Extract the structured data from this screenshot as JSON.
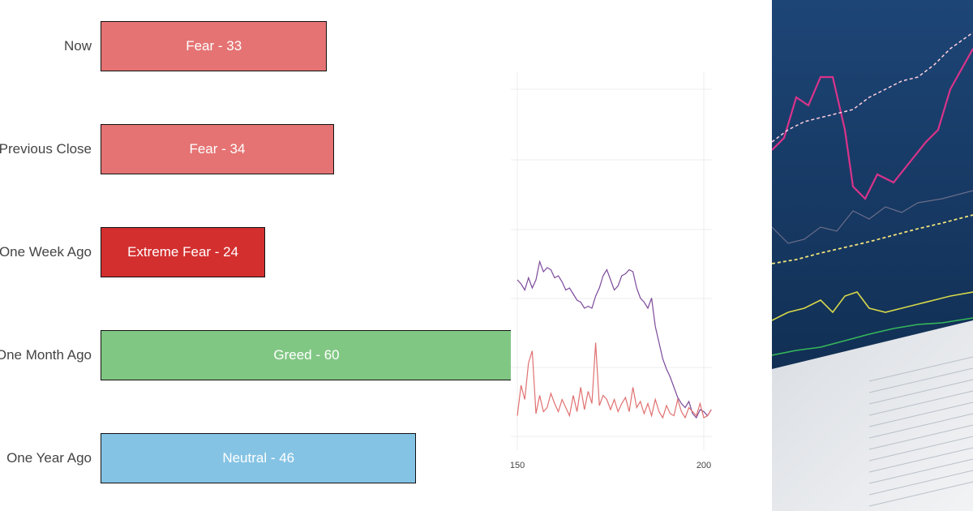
{
  "colors": {
    "fear": "#e57373",
    "extreme_fear": "#d32f2f",
    "greed": "#81c784",
    "neutral": "#85c3e4",
    "line_purple": "#7b4a9a",
    "line_red": "#e07070",
    "photo_bg": "#14345c"
  },
  "chart_data": [
    {
      "type": "bar",
      "orientation": "horizontal",
      "scale_max": 100,
      "categories": [
        "Now",
        "Previous Close",
        "One Week Ago",
        "One Month Ago",
        "One Year Ago"
      ],
      "values": [
        33,
        34,
        24,
        60,
        46
      ],
      "bar_labels": [
        "Fear - 33",
        "Fear - 34",
        "Extreme Fear - 24",
        "Greed - 60",
        "Neutral - 46"
      ],
      "bar_colors": [
        "#e57373",
        "#e57373",
        "#d32f2f",
        "#81c784",
        "#85c3e4"
      ]
    },
    {
      "type": "line",
      "x_ticks": [
        "150",
        "200"
      ],
      "xlim": [
        150,
        200
      ],
      "ylim": [
        0,
        100
      ],
      "grid": true,
      "series": [
        {
          "color": "#7b4a9a",
          "x": [
            150,
            151,
            152,
            153,
            154,
            155,
            156,
            157,
            158,
            159,
            160,
            161,
            162,
            163,
            164,
            165,
            166,
            167,
            168,
            169,
            170,
            171,
            172,
            173,
            174,
            175,
            176,
            177,
            178,
            179,
            180,
            181,
            182,
            183,
            184,
            185,
            186,
            187,
            188,
            189,
            190,
            191,
            192,
            193,
            194,
            195,
            196,
            197,
            198,
            199,
            200,
            201,
            202
          ],
          "values": [
            78,
            76,
            73,
            79,
            74,
            78,
            87,
            82,
            84,
            83,
            79,
            80,
            77,
            73,
            74,
            71,
            68,
            67,
            64,
            65,
            64,
            70,
            74,
            80,
            83,
            78,
            73,
            75,
            80,
            81,
            83,
            82,
            74,
            69,
            67,
            64,
            69,
            55,
            47,
            39,
            34,
            30,
            25,
            20,
            17,
            15,
            18,
            12,
            10,
            14,
            13,
            11,
            14
          ]
        },
        {
          "color": "#e07070",
          "x": [
            150,
            151,
            152,
            153,
            154,
            155,
            156,
            157,
            158,
            159,
            160,
            161,
            162,
            163,
            164,
            165,
            166,
            167,
            168,
            169,
            170,
            171,
            172,
            173,
            174,
            175,
            176,
            177,
            178,
            179,
            180,
            181,
            182,
            183,
            184,
            185,
            186,
            187,
            188,
            189,
            190,
            191,
            192,
            193,
            194,
            195,
            196,
            197,
            198,
            199,
            200,
            201,
            202
          ],
          "values": [
            11,
            26,
            19,
            37,
            43,
            12,
            21,
            13,
            15,
            22,
            17,
            13,
            19,
            15,
            11,
            21,
            13,
            25,
            14,
            23,
            17,
            47,
            16,
            21,
            19,
            14,
            19,
            13,
            17,
            20,
            13,
            25,
            15,
            18,
            12,
            17,
            11,
            19,
            13,
            10,
            16,
            12,
            11,
            19,
            13,
            10,
            15,
            13,
            11,
            17,
            10,
            11,
            14
          ]
        }
      ]
    }
  ]
}
